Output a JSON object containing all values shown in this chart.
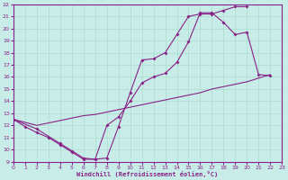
{
  "bg_color": "#c8ece8",
  "line_color": "#882288",
  "grid_color": "#aaddcc",
  "xlabel": "Windchill (Refroidissement éolien,°C)",
  "xmin": 0,
  "xmax": 23,
  "ymin": 9,
  "ymax": 22,
  "xticks": [
    0,
    1,
    2,
    3,
    4,
    5,
    6,
    7,
    8,
    9,
    10,
    11,
    12,
    13,
    14,
    15,
    16,
    17,
    18,
    19,
    20,
    21,
    22,
    23
  ],
  "yticks": [
    9,
    10,
    11,
    12,
    13,
    14,
    15,
    16,
    17,
    18,
    19,
    20,
    21,
    22
  ],
  "line1_x": [
    0,
    1,
    2,
    3,
    4,
    5,
    6,
    7,
    8,
    9,
    10,
    11,
    12,
    13,
    14,
    15,
    16,
    17,
    18,
    19,
    20
  ],
  "line1_y": [
    12.5,
    11.9,
    11.4,
    11.0,
    10.4,
    9.8,
    9.2,
    9.2,
    9.3,
    11.9,
    14.7,
    17.4,
    17.5,
    18.0,
    19.5,
    21.0,
    21.2,
    21.2,
    21.5,
    21.8,
    21.8
  ],
  "line2_x": [
    0,
    2,
    3,
    4,
    5,
    6,
    7,
    8,
    9,
    10,
    11,
    12,
    13,
    14,
    15,
    16,
    17,
    18,
    19,
    20,
    21,
    22
  ],
  "line2_y": [
    12.5,
    12.0,
    12.2,
    12.4,
    12.6,
    12.8,
    12.9,
    13.1,
    13.3,
    13.5,
    13.7,
    13.9,
    14.1,
    14.3,
    14.5,
    14.7,
    15.0,
    15.2,
    15.4,
    15.6,
    15.9,
    16.2
  ],
  "line3_x": [
    0,
    2,
    4,
    5,
    6,
    7,
    8,
    9,
    10,
    11,
    12,
    13,
    14,
    15,
    16,
    17,
    18,
    19,
    20,
    21,
    22
  ],
  "line3_y": [
    12.5,
    11.7,
    10.5,
    9.9,
    9.3,
    9.2,
    12.0,
    12.7,
    14.0,
    15.5,
    16.0,
    16.3,
    17.2,
    18.9,
    21.3,
    21.3,
    20.5,
    19.5,
    19.7,
    16.2,
    16.1
  ]
}
